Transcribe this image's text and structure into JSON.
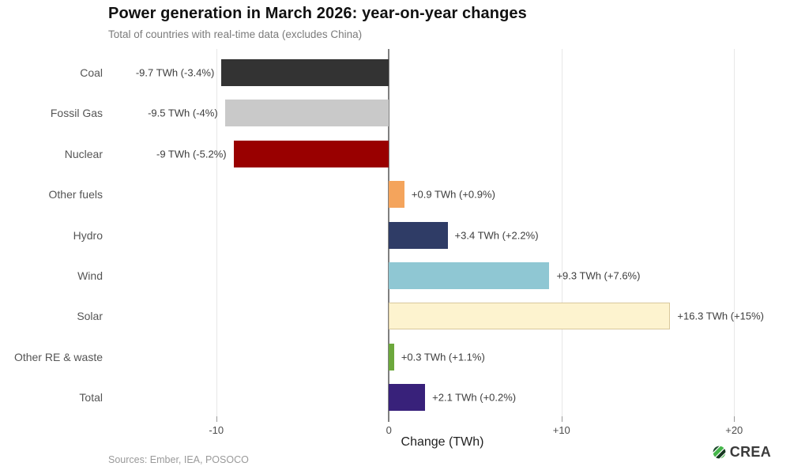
{
  "header": {
    "title": "Power generation in March 2026: year-on-year changes",
    "subtitle": "Total of countries with real-time data (excludes China)"
  },
  "chart_data": {
    "type": "bar",
    "orientation": "horizontal",
    "title": "Power generation in March 2026: year-on-year changes",
    "subtitle": "Total of countries with real-time data (excludes China)",
    "xlabel": "Change (TWh)",
    "ylabel": "",
    "xlim": [
      -16.35,
      22.55
    ],
    "grid": "vertical-only",
    "zero_line": true,
    "legend": "none",
    "x_ticks": [
      {
        "value": -10,
        "label": "-10"
      },
      {
        "value": 0,
        "label": "0"
      },
      {
        "value": 10,
        "label": "+10"
      },
      {
        "value": 20,
        "label": "+20"
      }
    ],
    "categories": [
      "Coal",
      "Fossil Gas",
      "Nuclear",
      "Other fuels",
      "Hydro",
      "Wind",
      "Solar",
      "Other RE & waste",
      "Total"
    ],
    "values": [
      -9.7,
      -9.5,
      -9.0,
      0.9,
      3.4,
      9.3,
      16.3,
      0.3,
      2.1
    ],
    "bars": [
      {
        "category": "Coal",
        "value": -9.7,
        "label": "-9.7 TWh (-3.4%)",
        "color": "#333333"
      },
      {
        "category": "Fossil Gas",
        "value": -9.5,
        "label": "-9.5 TWh (-4%)",
        "color": "#c9c9c9"
      },
      {
        "category": "Nuclear",
        "value": -9.0,
        "label": "-9 TWh (-5.2%)",
        "color": "#990000"
      },
      {
        "category": "Other fuels",
        "value": 0.9,
        "label": "+0.9 TWh (+0.9%)",
        "color": "#f4a45c"
      },
      {
        "category": "Hydro",
        "value": 3.4,
        "label": "+3.4 TWh (+2.2%)",
        "color": "#2f3c66"
      },
      {
        "category": "Wind",
        "value": 9.3,
        "label": "+9.3 TWh (+7.6%)",
        "color": "#8fc7d3"
      },
      {
        "category": "Solar",
        "value": 16.3,
        "label": "+16.3 TWh (+15%)",
        "color": "#fdf3cf",
        "border": "#d9c89c"
      },
      {
        "category": "Other RE & waste",
        "value": 0.3,
        "label": "+0.3 TWh (+1.1%)",
        "color": "#6ca83c"
      },
      {
        "category": "Total",
        "value": 2.1,
        "label": "+2.1 TWh (+0.2%)",
        "color": "#38217a"
      }
    ]
  },
  "footer": {
    "sources": "Sources: Ember, IEA, POSOCO",
    "logo_text": "CREA"
  },
  "colors": {
    "zero_line": "#7f7f7f",
    "gridline": "#e7e7e7",
    "logo_green_bright": "#44b649",
    "logo_green_dark": "#1f4d2e"
  }
}
